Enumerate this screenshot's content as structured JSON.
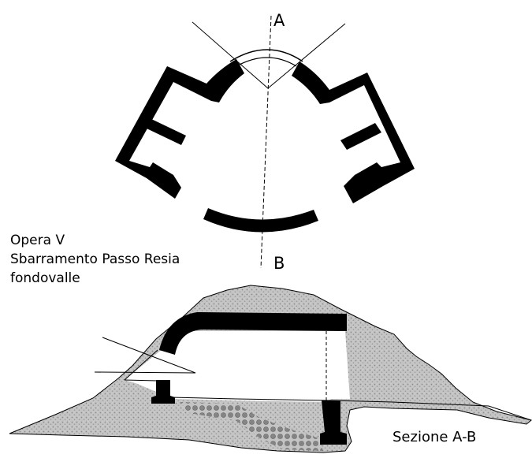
{
  "labels": {
    "point_a": "A",
    "point_b": "B",
    "section": "Sezione A-B"
  },
  "caption": {
    "line1": "Opera V",
    "line2": "Sbarramento Passo Resia",
    "line3": "fondovalle"
  },
  "colors": {
    "wall": "#000000",
    "rock_fill": "#bdbdbd",
    "line": "#000000",
    "background": "#ffffff"
  }
}
